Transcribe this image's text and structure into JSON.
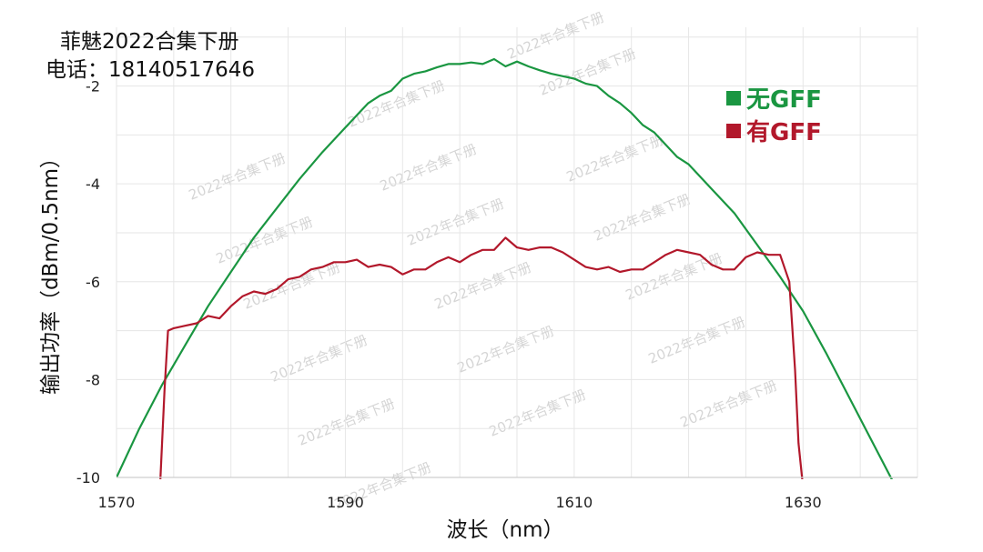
{
  "header": {
    "line1": "菲魅2022合集下册",
    "line2": "电话：18140517646"
  },
  "watermark_text": "2022年合集下册",
  "chart_data": {
    "type": "line",
    "xlabel": "波长（nm）",
    "ylabel": "输出功率（dBm/0.5nm）",
    "xlim": [
      1570,
      1640
    ],
    "ylim": [
      -10,
      -0.8
    ],
    "x_ticks": [
      1570,
      1590,
      1610,
      1630
    ],
    "x_tick_labels": [
      "1570",
      "1590",
      "1610",
      "1630"
    ],
    "y_ticks": [
      -2,
      -4,
      -6,
      -8,
      -10
    ],
    "y_tick_labels": [
      "-2",
      "-4",
      "-6",
      "-8",
      "-10"
    ],
    "grid": true,
    "legend_position": "top-right",
    "series": [
      {
        "name": "无GFF",
        "color": "#1a9641",
        "x": [
          1570,
          1572,
          1574,
          1576,
          1578,
          1580,
          1582,
          1584,
          1586,
          1588,
          1590,
          1591,
          1592,
          1593,
          1594,
          1595,
          1596,
          1597,
          1598,
          1599,
          1600,
          1601,
          1602,
          1603,
          1604,
          1605,
          1606,
          1607,
          1608,
          1609,
          1610,
          1611,
          1612,
          1613,
          1614,
          1615,
          1616,
          1617,
          1618,
          1619,
          1620,
          1622,
          1624,
          1626,
          1628,
          1630,
          1632,
          1634,
          1636,
          1638
        ],
        "y": [
          -10.0,
          -9.0,
          -8.1,
          -7.3,
          -6.5,
          -5.8,
          -5.1,
          -4.5,
          -3.9,
          -3.35,
          -2.85,
          -2.6,
          -2.35,
          -2.2,
          -2.1,
          -1.85,
          -1.75,
          -1.7,
          -1.62,
          -1.55,
          -1.55,
          -1.52,
          -1.55,
          -1.45,
          -1.6,
          -1.5,
          -1.6,
          -1.68,
          -1.75,
          -1.8,
          -1.85,
          -1.95,
          -2.0,
          -2.2,
          -2.35,
          -2.55,
          -2.8,
          -2.95,
          -3.2,
          -3.45,
          -3.6,
          -4.1,
          -4.6,
          -5.25,
          -5.9,
          -6.6,
          -7.45,
          -8.35,
          -9.25,
          -10.15
        ]
      },
      {
        "name": "有GFF",
        "color": "#b2182b",
        "x": [
          1573.8,
          1574.2,
          1574.5,
          1575,
          1576,
          1577,
          1578,
          1579,
          1580,
          1581,
          1582,
          1583,
          1584,
          1585,
          1586,
          1587,
          1588,
          1589,
          1590,
          1591,
          1592,
          1593,
          1594,
          1595,
          1596,
          1597,
          1598,
          1599,
          1600,
          1601,
          1602,
          1603,
          1604,
          1605,
          1606,
          1607,
          1608,
          1609,
          1610,
          1611,
          1612,
          1613,
          1614,
          1615,
          1616,
          1617,
          1618,
          1619,
          1620,
          1621,
          1622,
          1623,
          1624,
          1625,
          1626,
          1627,
          1628,
          1628.8,
          1629.3,
          1629.6,
          1630
        ],
        "y": [
          -10.2,
          -8.2,
          -7.0,
          -6.95,
          -6.9,
          -6.85,
          -6.7,
          -6.75,
          -6.5,
          -6.3,
          -6.2,
          -6.25,
          -6.15,
          -5.95,
          -5.9,
          -5.75,
          -5.7,
          -5.6,
          -5.6,
          -5.55,
          -5.7,
          -5.65,
          -5.7,
          -5.85,
          -5.75,
          -5.75,
          -5.6,
          -5.5,
          -5.6,
          -5.45,
          -5.35,
          -5.35,
          -5.1,
          -5.3,
          -5.35,
          -5.3,
          -5.3,
          -5.4,
          -5.55,
          -5.7,
          -5.75,
          -5.7,
          -5.8,
          -5.75,
          -5.75,
          -5.6,
          -5.45,
          -5.35,
          -5.4,
          -5.45,
          -5.65,
          -5.75,
          -5.75,
          -5.5,
          -5.4,
          -5.45,
          -5.45,
          -6.0,
          -7.8,
          -9.3,
          -10.2
        ]
      }
    ]
  }
}
